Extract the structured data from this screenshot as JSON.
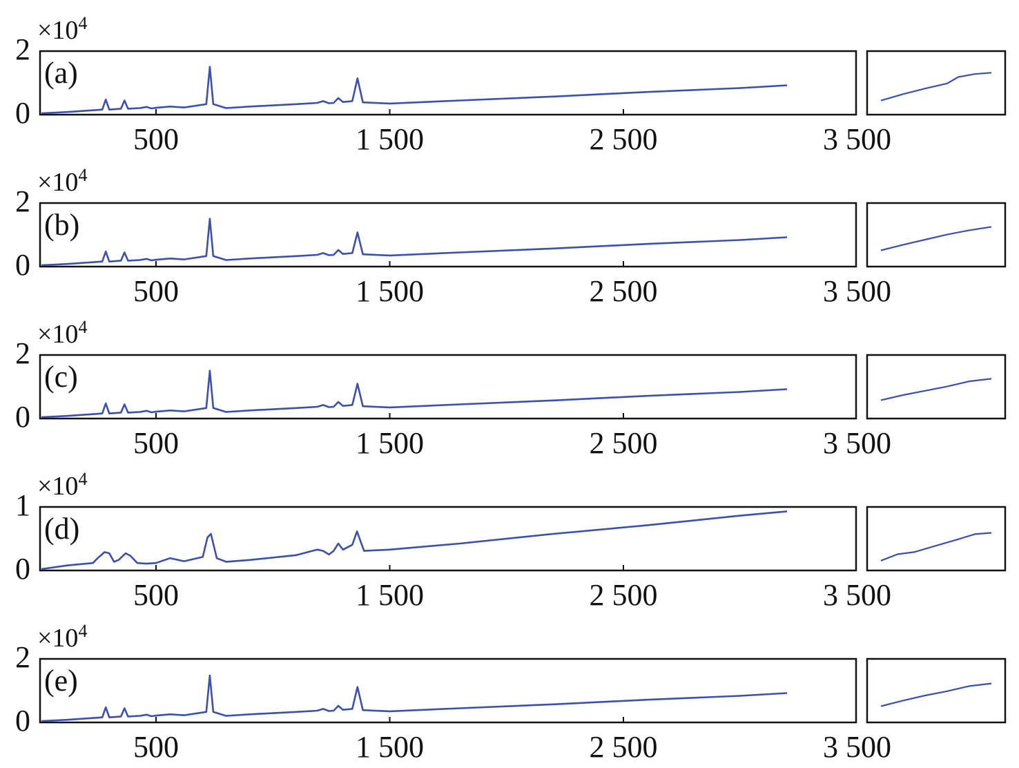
{
  "chart_data": [
    {
      "type": "line",
      "panel_label": "(a)",
      "y_multiplier": "×10",
      "y_multiplier_exp": "4",
      "yticks": [
        "0",
        "2"
      ],
      "ylim": [
        0,
        2
      ],
      "xlim": [
        0,
        3500
      ],
      "xticks": [
        "500",
        "1 500",
        "2 500",
        "3 500"
      ],
      "xtick_values": [
        500,
        1500,
        2500,
        3500
      ],
      "series": [
        {
          "x": [
            0,
            120,
            270,
            285,
            300,
            350,
            365,
            380,
            430,
            460,
            480,
            500,
            560,
            620,
            715,
            730,
            745,
            800,
            900,
            1100,
            1190,
            1215,
            1240,
            1260,
            1280,
            1300,
            1340,
            1362,
            1385,
            1500,
            1800,
            2200,
            2600,
            3000,
            3200
          ],
          "values": [
            0,
            0.04,
            0.12,
            0.45,
            0.12,
            0.15,
            0.42,
            0.15,
            0.17,
            0.21,
            0.16,
            0.18,
            0.22,
            0.19,
            0.3,
            1.53,
            0.3,
            0.17,
            0.22,
            0.3,
            0.34,
            0.4,
            0.33,
            0.34,
            0.5,
            0.37,
            0.4,
            1.15,
            0.36,
            0.32,
            0.42,
            0.55,
            0.7,
            0.83,
            0.92
          ]
        }
      ],
      "inset": {
        "x": [
          0,
          0.2,
          0.4,
          0.6,
          0.7,
          0.85,
          1
        ],
        "values": [
          0.2,
          0.35,
          0.48,
          0.6,
          0.75,
          0.82,
          0.85
        ]
      }
    },
    {
      "type": "line",
      "panel_label": "(b)",
      "y_multiplier": "×10",
      "y_multiplier_exp": "4",
      "yticks": [
        "0",
        "2"
      ],
      "ylim": [
        0,
        2
      ],
      "xlim": [
        0,
        3500
      ],
      "xticks": [
        "500",
        "1 500",
        "2 500",
        "3 500"
      ],
      "xtick_values": [
        500,
        1500,
        2500,
        3500
      ],
      "series": [
        {
          "x": [
            0,
            120,
            270,
            285,
            300,
            350,
            365,
            380,
            430,
            460,
            480,
            500,
            560,
            620,
            715,
            730,
            745,
            800,
            900,
            1100,
            1190,
            1215,
            1240,
            1260,
            1280,
            1300,
            1340,
            1362,
            1385,
            1500,
            1800,
            2200,
            2600,
            3000,
            3200
          ],
          "values": [
            0,
            0.04,
            0.12,
            0.45,
            0.12,
            0.15,
            0.42,
            0.15,
            0.17,
            0.21,
            0.16,
            0.18,
            0.22,
            0.19,
            0.3,
            1.53,
            0.3,
            0.17,
            0.22,
            0.3,
            0.34,
            0.4,
            0.33,
            0.34,
            0.5,
            0.37,
            0.4,
            1.08,
            0.36,
            0.32,
            0.42,
            0.55,
            0.7,
            0.83,
            0.92
          ]
        }
      ],
      "inset": {
        "x": [
          0,
          0.2,
          0.4,
          0.6,
          0.8,
          1
        ],
        "values": [
          0.25,
          0.38,
          0.5,
          0.62,
          0.72,
          0.8
        ]
      }
    },
    {
      "type": "line",
      "panel_label": "(c)",
      "y_multiplier": "×10",
      "y_multiplier_exp": "4",
      "yticks": [
        "0",
        "2"
      ],
      "ylim": [
        0,
        2
      ],
      "xlim": [
        0,
        3500
      ],
      "xticks": [
        "500",
        "1 500",
        "2 500",
        "3 500"
      ],
      "xtick_values": [
        500,
        1500,
        2500,
        3500
      ],
      "series": [
        {
          "x": [
            0,
            120,
            270,
            285,
            300,
            350,
            365,
            380,
            430,
            460,
            480,
            500,
            560,
            620,
            715,
            730,
            745,
            800,
            900,
            1100,
            1190,
            1215,
            1240,
            1260,
            1280,
            1300,
            1340,
            1362,
            1385,
            1500,
            1800,
            2200,
            2600,
            3000,
            3200
          ],
          "values": [
            0,
            0.04,
            0.12,
            0.45,
            0.12,
            0.15,
            0.42,
            0.15,
            0.17,
            0.21,
            0.16,
            0.18,
            0.22,
            0.19,
            0.3,
            1.53,
            0.3,
            0.17,
            0.22,
            0.3,
            0.34,
            0.4,
            0.33,
            0.34,
            0.5,
            0.37,
            0.4,
            1.1,
            0.36,
            0.32,
            0.42,
            0.55,
            0.7,
            0.83,
            0.92
          ]
        }
      ],
      "inset": {
        "x": [
          0,
          0.2,
          0.4,
          0.6,
          0.8,
          1
        ],
        "values": [
          0.3,
          0.42,
          0.52,
          0.62,
          0.74,
          0.8
        ]
      }
    },
    {
      "type": "line",
      "panel_label": "(d)",
      "y_multiplier": "×10",
      "y_multiplier_exp": "4",
      "yticks": [
        "0",
        "1"
      ],
      "ylim": [
        0,
        1
      ],
      "xlim": [
        0,
        3500
      ],
      "xticks": [
        "500",
        "1 500",
        "2 500",
        "3 500"
      ],
      "xtick_values": [
        500,
        1500,
        2500,
        3500
      ],
      "series": [
        {
          "x": [
            0,
            120,
            230,
            250,
            280,
            300,
            320,
            340,
            370,
            390,
            420,
            460,
            500,
            560,
            620,
            700,
            720,
            735,
            760,
            800,
            900,
            1100,
            1190,
            1215,
            1240,
            1260,
            1280,
            1300,
            1340,
            1360,
            1390,
            1500,
            1800,
            2200,
            2600,
            3000,
            3200
          ],
          "values": [
            0,
            0.06,
            0.1,
            0.18,
            0.28,
            0.26,
            0.12,
            0.15,
            0.26,
            0.22,
            0.1,
            0.09,
            0.1,
            0.18,
            0.13,
            0.2,
            0.52,
            0.58,
            0.18,
            0.12,
            0.15,
            0.23,
            0.32,
            0.3,
            0.24,
            0.3,
            0.42,
            0.32,
            0.4,
            0.62,
            0.3,
            0.32,
            0.42,
            0.58,
            0.72,
            0.88,
            0.95
          ]
        }
      ],
      "inset": {
        "x": [
          0,
          0.15,
          0.3,
          0.5,
          0.7,
          0.85,
          1
        ],
        "values": [
          0.1,
          0.25,
          0.3,
          0.45,
          0.6,
          0.72,
          0.75
        ]
      }
    },
    {
      "type": "line",
      "panel_label": "(e)",
      "y_multiplier": "×10",
      "y_multiplier_exp": "4",
      "yticks": [
        "0",
        "2"
      ],
      "ylim": [
        0,
        2
      ],
      "xlim": [
        0,
        3500
      ],
      "xticks": [
        "500",
        "1 500",
        "2 500",
        "3 500"
      ],
      "xtick_values": [
        500,
        1500,
        2500,
        3500
      ],
      "series": [
        {
          "x": [
            0,
            120,
            270,
            285,
            300,
            350,
            365,
            380,
            430,
            460,
            480,
            500,
            560,
            620,
            715,
            730,
            745,
            800,
            900,
            1100,
            1190,
            1215,
            1240,
            1260,
            1280,
            1300,
            1340,
            1362,
            1385,
            1500,
            1800,
            2200,
            2600,
            3000,
            3200
          ],
          "values": [
            0,
            0.04,
            0.12,
            0.45,
            0.12,
            0.15,
            0.42,
            0.15,
            0.17,
            0.21,
            0.16,
            0.18,
            0.22,
            0.19,
            0.3,
            1.5,
            0.3,
            0.17,
            0.22,
            0.3,
            0.34,
            0.4,
            0.33,
            0.34,
            0.5,
            0.37,
            0.4,
            1.12,
            0.36,
            0.32,
            0.42,
            0.55,
            0.7,
            0.83,
            0.92
          ]
        }
      ],
      "inset": {
        "x": [
          0,
          0.2,
          0.4,
          0.6,
          0.8,
          1
        ],
        "values": [
          0.25,
          0.38,
          0.5,
          0.6,
          0.72,
          0.78
        ]
      }
    }
  ],
  "colors": {
    "line": "#3a4fb0",
    "axis": "#111111"
  }
}
